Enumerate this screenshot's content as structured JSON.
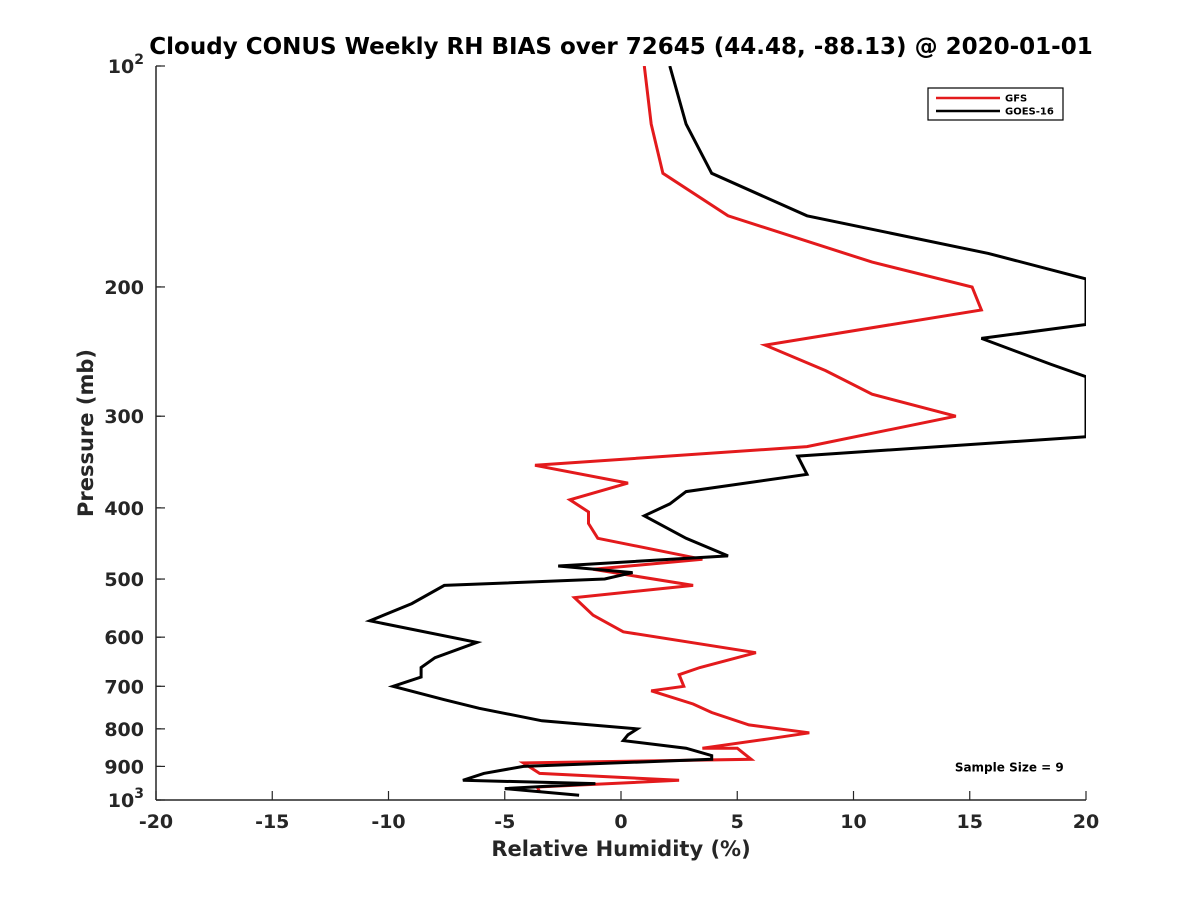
{
  "chart_data": {
    "type": "line",
    "title": "Cloudy CONUS Weekly RH BIAS over 72645 (44.48, -88.13) @ 2020-01-01",
    "xlabel": "Relative Humidity (%)",
    "ylabel": "Pressure (mb)",
    "xlim": [
      -20,
      20
    ],
    "ylim": [
      100,
      1000
    ],
    "y_scale": "log",
    "y_reversed": true,
    "grid": false,
    "legend_position": "top-right",
    "x_ticks": [
      {
        "value": -20,
        "label": "-20"
      },
      {
        "value": -15,
        "label": "-15"
      },
      {
        "value": -10,
        "label": "-10"
      },
      {
        "value": -5,
        "label": "-5"
      },
      {
        "value": 0,
        "label": "0"
      },
      {
        "value": 5,
        "label": "5"
      },
      {
        "value": 10,
        "label": "10"
      },
      {
        "value": 15,
        "label": "15"
      },
      {
        "value": 20,
        "label": "20"
      }
    ],
    "y_ticks": [
      {
        "value": 100,
        "label": "10",
        "sup": "2"
      },
      {
        "value": 200,
        "label": "200",
        "sup": ""
      },
      {
        "value": 300,
        "label": "300",
        "sup": ""
      },
      {
        "value": 400,
        "label": "400",
        "sup": ""
      },
      {
        "value": 500,
        "label": "500",
        "sup": ""
      },
      {
        "value": 600,
        "label": "600",
        "sup": ""
      },
      {
        "value": 700,
        "label": "700",
        "sup": ""
      },
      {
        "value": 800,
        "label": "800",
        "sup": ""
      },
      {
        "value": 900,
        "label": "900",
        "sup": ""
      },
      {
        "value": 1000,
        "label": "10",
        "sup": "3"
      }
    ],
    "series": [
      {
        "name": "GFS",
        "color": "#e31a1c",
        "points": [
          [
            1.0,
            100
          ],
          [
            1.3,
            120
          ],
          [
            1.8,
            140
          ],
          [
            4.6,
            160
          ],
          [
            10.8,
            185
          ],
          [
            15.1,
            200
          ],
          [
            15.5,
            215
          ],
          [
            6.2,
            240
          ],
          [
            8.8,
            260
          ],
          [
            10.8,
            280
          ],
          [
            14.4,
            300
          ],
          [
            8.0,
            330
          ],
          [
            -3.7,
            350
          ],
          [
            0.3,
            370
          ],
          [
            -2.2,
            390
          ],
          [
            -1.4,
            405
          ],
          [
            -1.4,
            420
          ],
          [
            -1.0,
            440
          ],
          [
            3.5,
            470
          ],
          [
            -1.2,
            485
          ],
          [
            3.1,
            510
          ],
          [
            -2.0,
            530
          ],
          [
            -1.2,
            560
          ],
          [
            0.1,
            590
          ],
          [
            5.8,
            630
          ],
          [
            3.4,
            660
          ],
          [
            2.5,
            675
          ],
          [
            2.7,
            700
          ],
          [
            1.3,
            710
          ],
          [
            3.1,
            740
          ],
          [
            3.9,
            760
          ],
          [
            5.5,
            790
          ],
          [
            8.1,
            810
          ],
          [
            6.4,
            825
          ],
          [
            3.5,
            850
          ],
          [
            5.0,
            850
          ],
          [
            5.2,
            860
          ],
          [
            5.6,
            880
          ],
          [
            -4.2,
            890
          ],
          [
            -3.5,
            920
          ],
          [
            2.5,
            940
          ],
          [
            -3.6,
            960
          ],
          [
            -3.5,
            975
          ]
        ]
      },
      {
        "name": "GOES-16",
        "color": "#000000",
        "points": [
          [
            2.1,
            100
          ],
          [
            2.8,
            120
          ],
          [
            3.9,
            140
          ],
          [
            8.0,
            160
          ],
          [
            15.8,
            180
          ],
          [
            20.0,
            195
          ],
          [
            20.0,
            225
          ],
          [
            15.5,
            235
          ],
          [
            18.5,
            255
          ],
          [
            20.0,
            265
          ],
          [
            20.0,
            320
          ],
          [
            7.6,
            340
          ],
          [
            8.0,
            360
          ],
          [
            2.8,
            380
          ],
          [
            2.1,
            395
          ],
          [
            1.0,
            410
          ],
          [
            2.8,
            440
          ],
          [
            4.6,
            465
          ],
          [
            -2.7,
            480
          ],
          [
            0.5,
            490
          ],
          [
            -0.7,
            500
          ],
          [
            -7.6,
            510
          ],
          [
            -9.0,
            540
          ],
          [
            -10.8,
            570
          ],
          [
            -6.2,
            610
          ],
          [
            -8.0,
            640
          ],
          [
            -8.6,
            660
          ],
          [
            -8.6,
            680
          ],
          [
            -9.8,
            700
          ],
          [
            -7.6,
            730
          ],
          [
            -6.1,
            750
          ],
          [
            -3.4,
            780
          ],
          [
            0.7,
            800
          ],
          [
            0.3,
            815
          ],
          [
            0.1,
            830
          ],
          [
            2.8,
            850
          ],
          [
            3.9,
            870
          ],
          [
            3.9,
            880
          ],
          [
            -4.2,
            900
          ],
          [
            -5.9,
            920
          ],
          [
            -6.8,
            940
          ],
          [
            -1.1,
            950
          ],
          [
            -5.0,
            965
          ],
          [
            -1.8,
            985
          ]
        ]
      }
    ],
    "legend": [
      {
        "label": "GFS",
        "color": "#e31a1c"
      },
      {
        "label": "GOES-16",
        "color": "#000000"
      }
    ],
    "annotations": [
      {
        "text": "Sample Size = 9",
        "x": 16.7,
        "y": 915
      }
    ]
  }
}
